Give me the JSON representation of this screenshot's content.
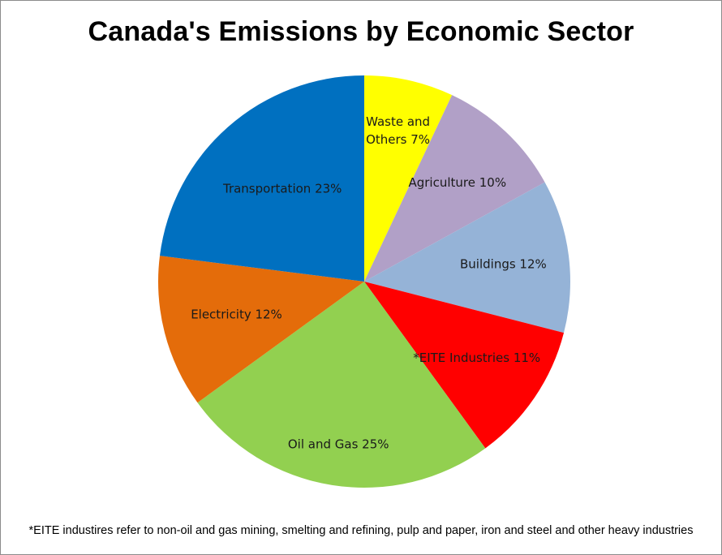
{
  "chart_data": {
    "type": "pie",
    "title": "Canada's Emissions by Economic Sector",
    "slices": [
      {
        "label": "Waste and Others 7%",
        "lines": [
          "Waste and",
          "Others 7%"
        ],
        "value": 7,
        "color": "#ffff00"
      },
      {
        "label": "Agriculture 10%",
        "lines": [
          "Agriculture 10%"
        ],
        "value": 10,
        "color": "#b1a0c7"
      },
      {
        "label": "Buildings 12%",
        "lines": [
          "Buildings 12%"
        ],
        "value": 12,
        "color": "#95b3d7"
      },
      {
        "label": "*EITE Industries 11%",
        "lines": [
          "*EITE Industries 11%"
        ],
        "value": 11,
        "color": "#ff0000"
      },
      {
        "label": "Oil and Gas 25%",
        "lines": [
          "Oil and Gas 25%"
        ],
        "value": 25,
        "color": "#92d050"
      },
      {
        "label": "Electricity 12%",
        "lines": [
          "Electricity 12%"
        ],
        "value": 12,
        "color": "#e46c0a"
      },
      {
        "label": "Transportation 23%",
        "lines": [
          "Transportation 23%"
        ],
        "value": 23,
        "color": "#0070c0"
      }
    ],
    "footnote": "*EITE industires refer to non-oil and gas mining, smelting and refining, pulp and paper, iron and steel and other heavy industries"
  }
}
